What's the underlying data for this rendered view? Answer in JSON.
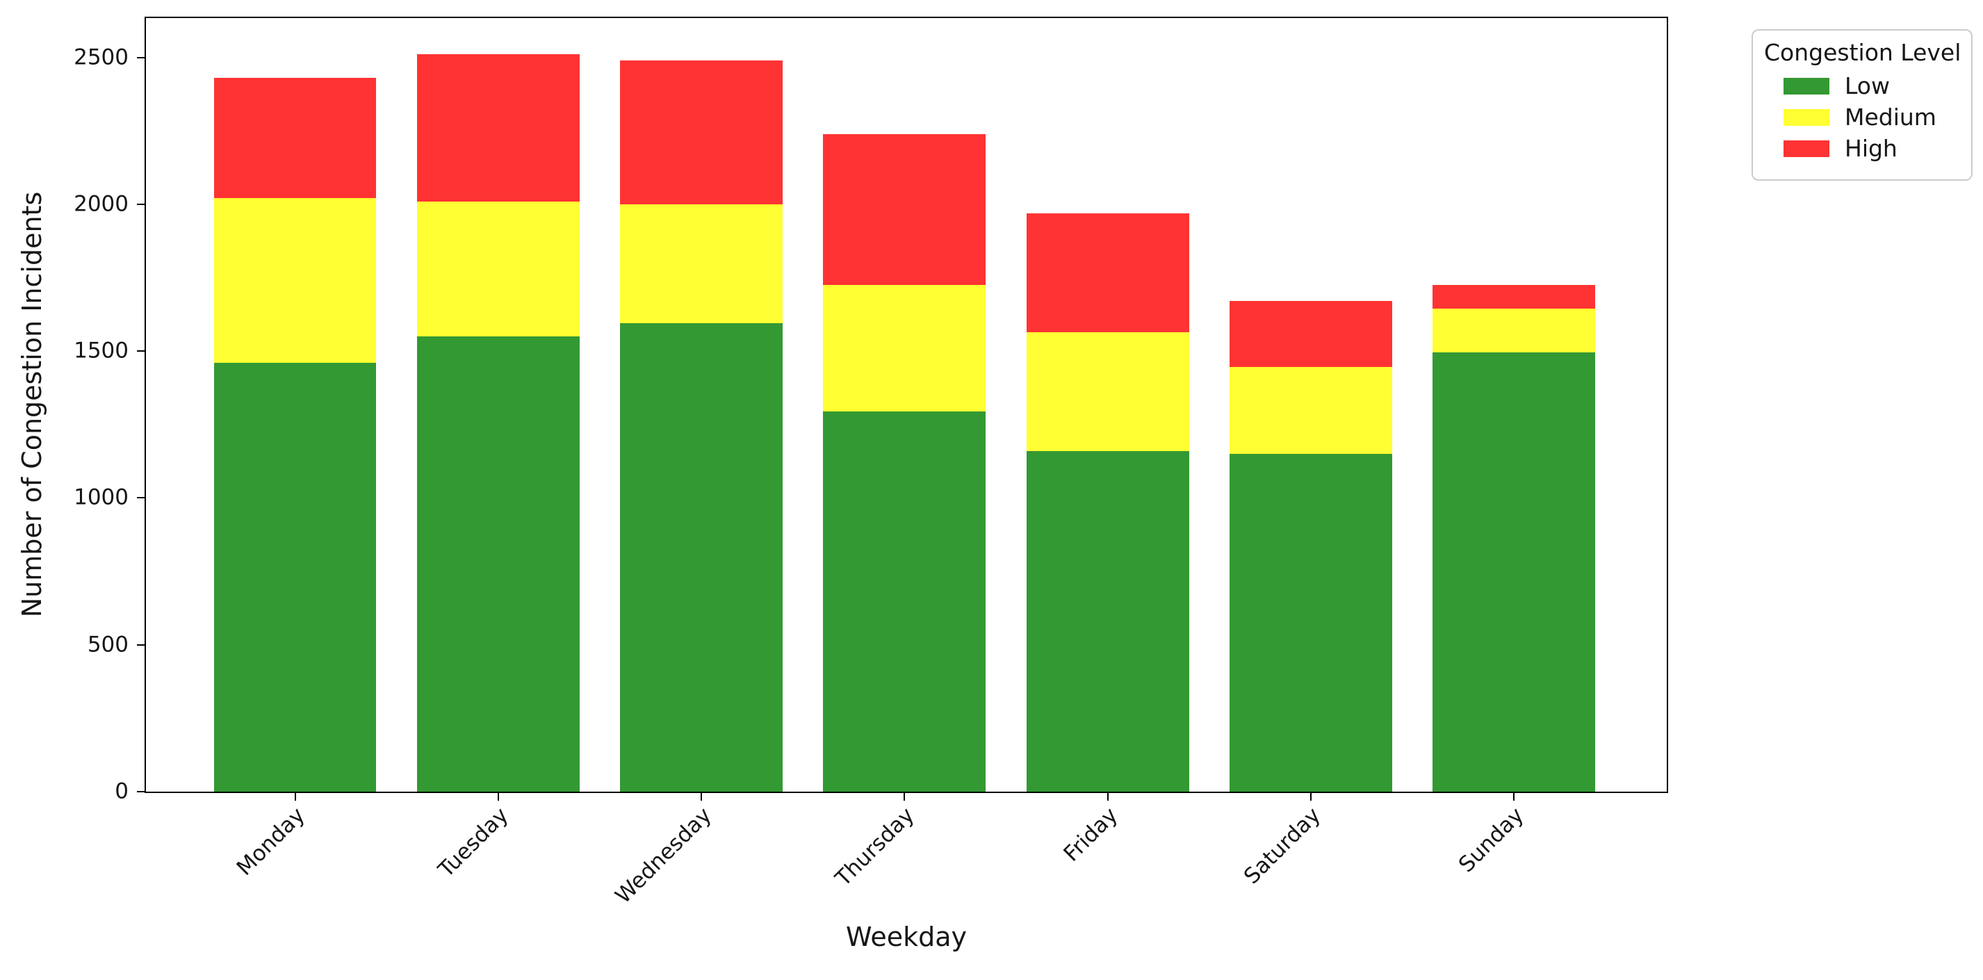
{
  "figure": {
    "background": "#ffffff"
  },
  "chart_data": {
    "type": "bar",
    "stacked": true,
    "title": "",
    "xlabel": "Weekday",
    "ylabel": "Number of Congestion Incidents",
    "categories": [
      "Monday",
      "Tuesday",
      "Wednesday",
      "Thursday",
      "Friday",
      "Saturday",
      "Sunday"
    ],
    "series": [
      {
        "name": "Low",
        "color": "#339933",
        "values": [
          1460,
          1550,
          1595,
          1295,
          1160,
          1150,
          1495
        ]
      },
      {
        "name": "Medium",
        "color": "#ffff33",
        "values": [
          560,
          460,
          405,
          430,
          405,
          295,
          150
        ]
      },
      {
        "name": "High",
        "color": "#ff3333",
        "values": [
          410,
          500,
          490,
          515,
          405,
          225,
          80
        ]
      }
    ],
    "yticks": [
      0,
      500,
      1000,
      1500,
      2000,
      2500
    ],
    "ylim": [
      0,
      2634
    ],
    "x_inner_lim": [
      -0.734,
      6.752
    ],
    "bar_width_fraction": 0.8,
    "grid": false,
    "x_tick_rotation_deg": 45,
    "legend": {
      "title": "Congestion Level",
      "position": "upper-right-outside"
    },
    "spine_color": "#000000"
  }
}
